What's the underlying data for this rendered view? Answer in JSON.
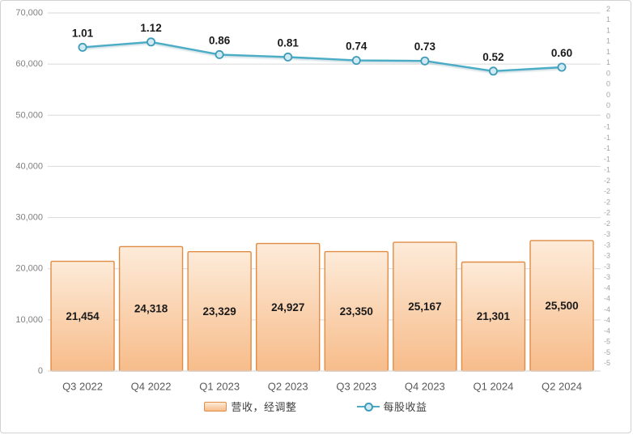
{
  "figure": {
    "background": "#ffffff",
    "border_color": "#d2d2d2"
  },
  "legend": {
    "revenue_label": "营收，经调整",
    "eps_label": "每股收益"
  },
  "colors": {
    "bar_fill_top": "#fdebd9",
    "bar_fill_bottom": "#f7bc8a",
    "bar_border": "#e08c45",
    "line": "#4bacc6",
    "marker_fill": "#d2eaf4",
    "marker_stroke": "#3f9cb8",
    "gridline": "#d9d9d9",
    "left_axis_text": "#808080",
    "right_axis_text": "#a3a3a3",
    "category_text": "#595959",
    "data_label_text": "#1a1a1a"
  },
  "chart_data": {
    "type": "bar",
    "title": "",
    "categories": [
      "Q3 2022",
      "Q4 2022",
      "Q1 2023",
      "Q2 2023",
      "Q3 2023",
      "Q4 2023",
      "Q1 2024",
      "Q2 2024"
    ],
    "series": [
      {
        "name": "营收，经调整",
        "type": "bar",
        "axis": "left",
        "values": [
          21454,
          24318,
          23329,
          24927,
          23350,
          25167,
          21301,
          25500
        ],
        "labels": [
          "21,454",
          "24,318",
          "23,329",
          "24,927",
          "23,350",
          "25,167",
          "21,301",
          "25,500"
        ]
      },
      {
        "name": "每股收益",
        "type": "line",
        "axis": "right",
        "values": [
          1.01,
          1.12,
          0.86,
          0.81,
          0.74,
          0.73,
          0.52,
          0.6
        ],
        "labels": [
          "1.01",
          "1.12",
          "0.86",
          "0.81",
          "0.74",
          "0.73",
          "0.52",
          "0.60"
        ]
      }
    ],
    "left_axis": {
      "ticks": [
        "70,000",
        "60,000",
        "50,000",
        "40,000",
        "30,000",
        "20,000",
        "10,000",
        "0"
      ],
      "range": [
        0,
        70000
      ]
    },
    "right_axis": {
      "ticks": [
        "2",
        "1",
        "1",
        "1",
        "1",
        "1",
        "0",
        "0",
        "0",
        "0",
        "0",
        "-1",
        "-1",
        "-1",
        "-1",
        "-1",
        "-2",
        "-2",
        "-2",
        "-2",
        "-2",
        "-3",
        "-3",
        "-3",
        "-3",
        "-3",
        "-4",
        "-4",
        "-4",
        "-4",
        "-4",
        "-5",
        "-5",
        "-5"
      ]
    },
    "grid": true,
    "legend_position": "bottom"
  }
}
